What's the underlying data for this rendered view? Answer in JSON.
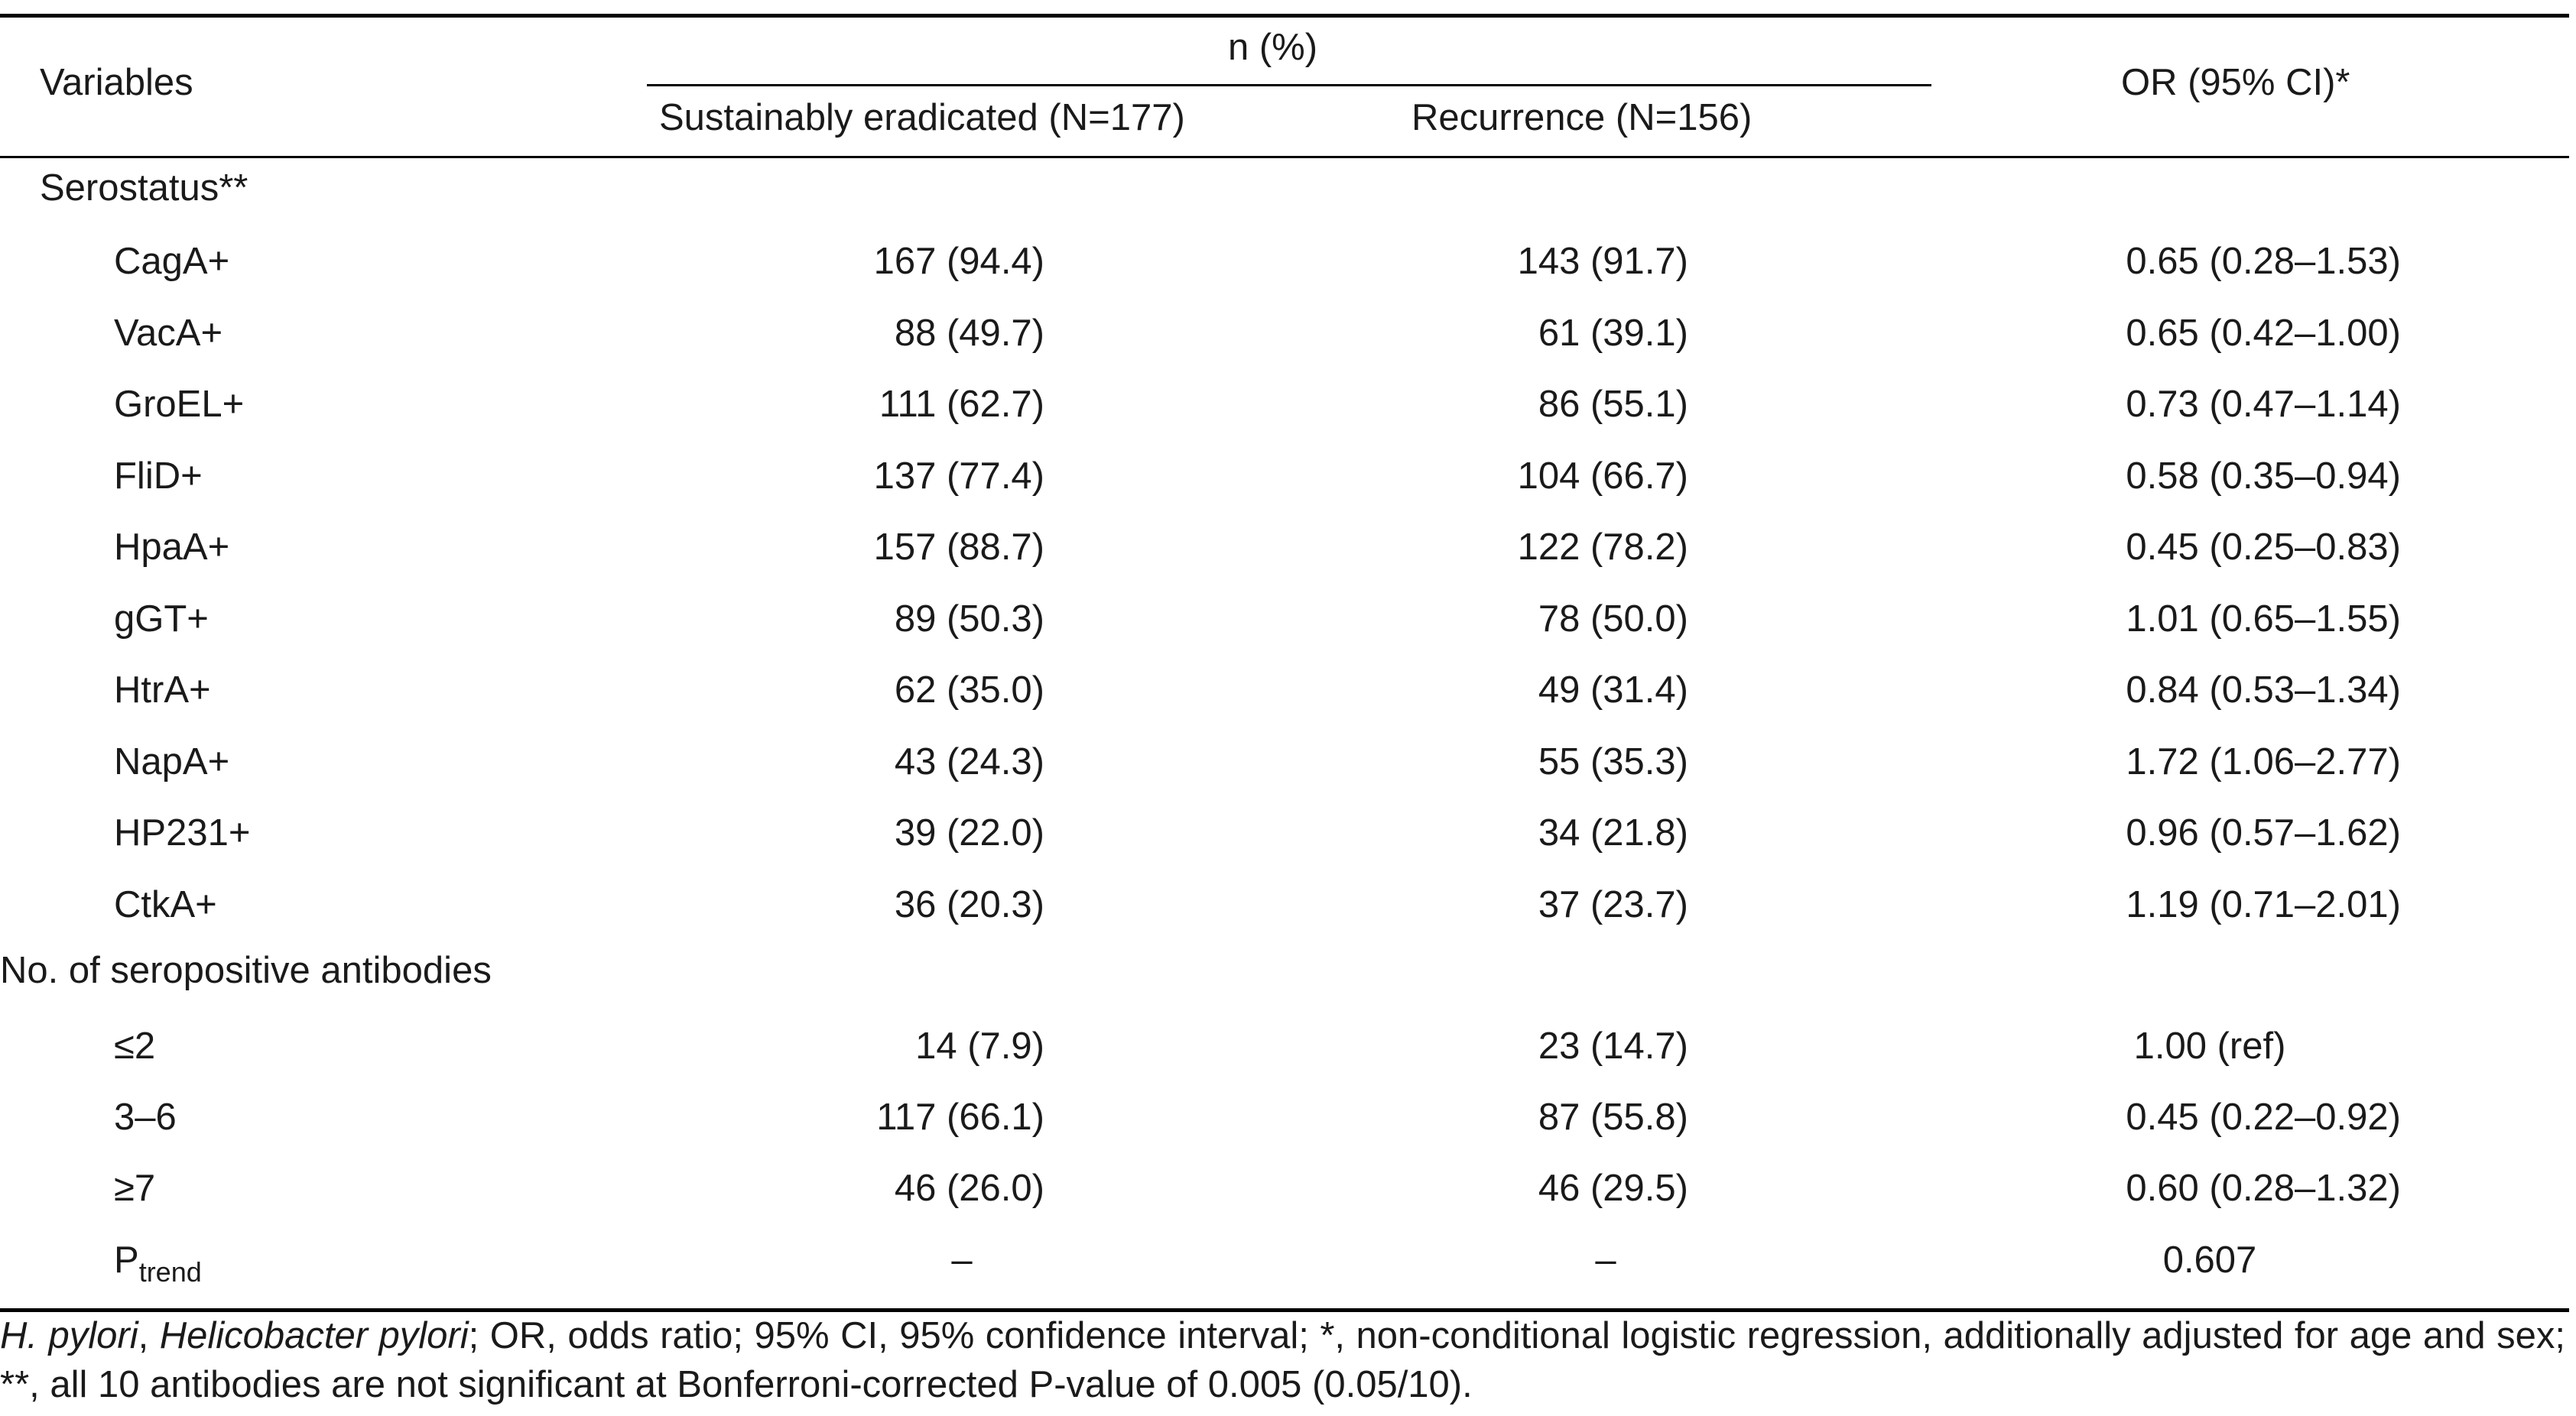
{
  "header": {
    "variables": "Variables",
    "n_pct": "n (%)",
    "col_eradicated": "Sustainably eradicated (N=177)",
    "col_recurrence": "Recurrence (N=156)",
    "col_or": "OR (95% CI)*"
  },
  "section_serostatus": "Serostatus**",
  "serostatus_rows": [
    {
      "label": "CagA+",
      "eradicated": "167 (94.4)",
      "recurrence": "143 (91.7)",
      "or": "0.65 (0.28–1.53)"
    },
    {
      "label": "VacA+",
      "eradicated": "88 (49.7)",
      "recurrence": "61 (39.1)",
      "or": "0.65 (0.42–1.00)"
    },
    {
      "label": "GroEL+",
      "eradicated": "111 (62.7)",
      "recurrence": "86 (55.1)",
      "or": "0.73 (0.47–1.14)"
    },
    {
      "label": "FliD+",
      "eradicated": "137 (77.4)",
      "recurrence": "104 (66.7)",
      "or": "0.58 (0.35–0.94)"
    },
    {
      "label": "HpaA+",
      "eradicated": "157 (88.7)",
      "recurrence": "122 (78.2)",
      "or": "0.45 (0.25–0.83)"
    },
    {
      "label": "gGT+",
      "eradicated": "89 (50.3)",
      "recurrence": "78 (50.0)",
      "or": "1.01 (0.65–1.55)"
    },
    {
      "label": "HtrA+",
      "eradicated": "62 (35.0)",
      "recurrence": "49 (31.4)",
      "or": "0.84 (0.53–1.34)"
    },
    {
      "label": "NapA+",
      "eradicated": "43 (24.3)",
      "recurrence": "55 (35.3)",
      "or": "1.72 (1.06–2.77)"
    },
    {
      "label": "HP231+",
      "eradicated": "39 (22.0)",
      "recurrence": "34 (21.8)",
      "or": "0.96 (0.57–1.62)"
    },
    {
      "label": "CtkA+",
      "eradicated": "36 (20.3)",
      "recurrence": "37 (23.7)",
      "or": "1.19 (0.71–2.01)"
    }
  ],
  "section_count": "No. of seropositive antibodies",
  "count_rows": [
    {
      "label": "≤2",
      "eradicated": "14 (7.9)",
      "recurrence": "23 (14.7)",
      "or": "1.00 (ref)"
    },
    {
      "label": "3–6",
      "eradicated": "117 (66.1)",
      "recurrence": "87 (55.8)",
      "or": "0.45 (0.22–0.92)"
    },
    {
      "label": "≥7",
      "eradicated": "46 (26.0)",
      "recurrence": "46 (29.5)",
      "or": "0.60 (0.28–1.32)"
    }
  ],
  "ptrend": {
    "label_main": "P",
    "label_sub": "trend",
    "eradicated": "–",
    "recurrence": "–",
    "or": "0.607"
  },
  "footnote": {
    "abbr1_italic": "H. pylori",
    "sep1": ", ",
    "abbr1_def_italic": "Helicobacter pylori",
    "rest": "; OR, odds ratio; 95% CI, 95% confidence interval; *, non-conditional logistic regression, additionally adjusted for age and sex; **, all 10 antibodies are not significant at Bonferroni-corrected P-value of 0.005 (0.05/10)."
  }
}
